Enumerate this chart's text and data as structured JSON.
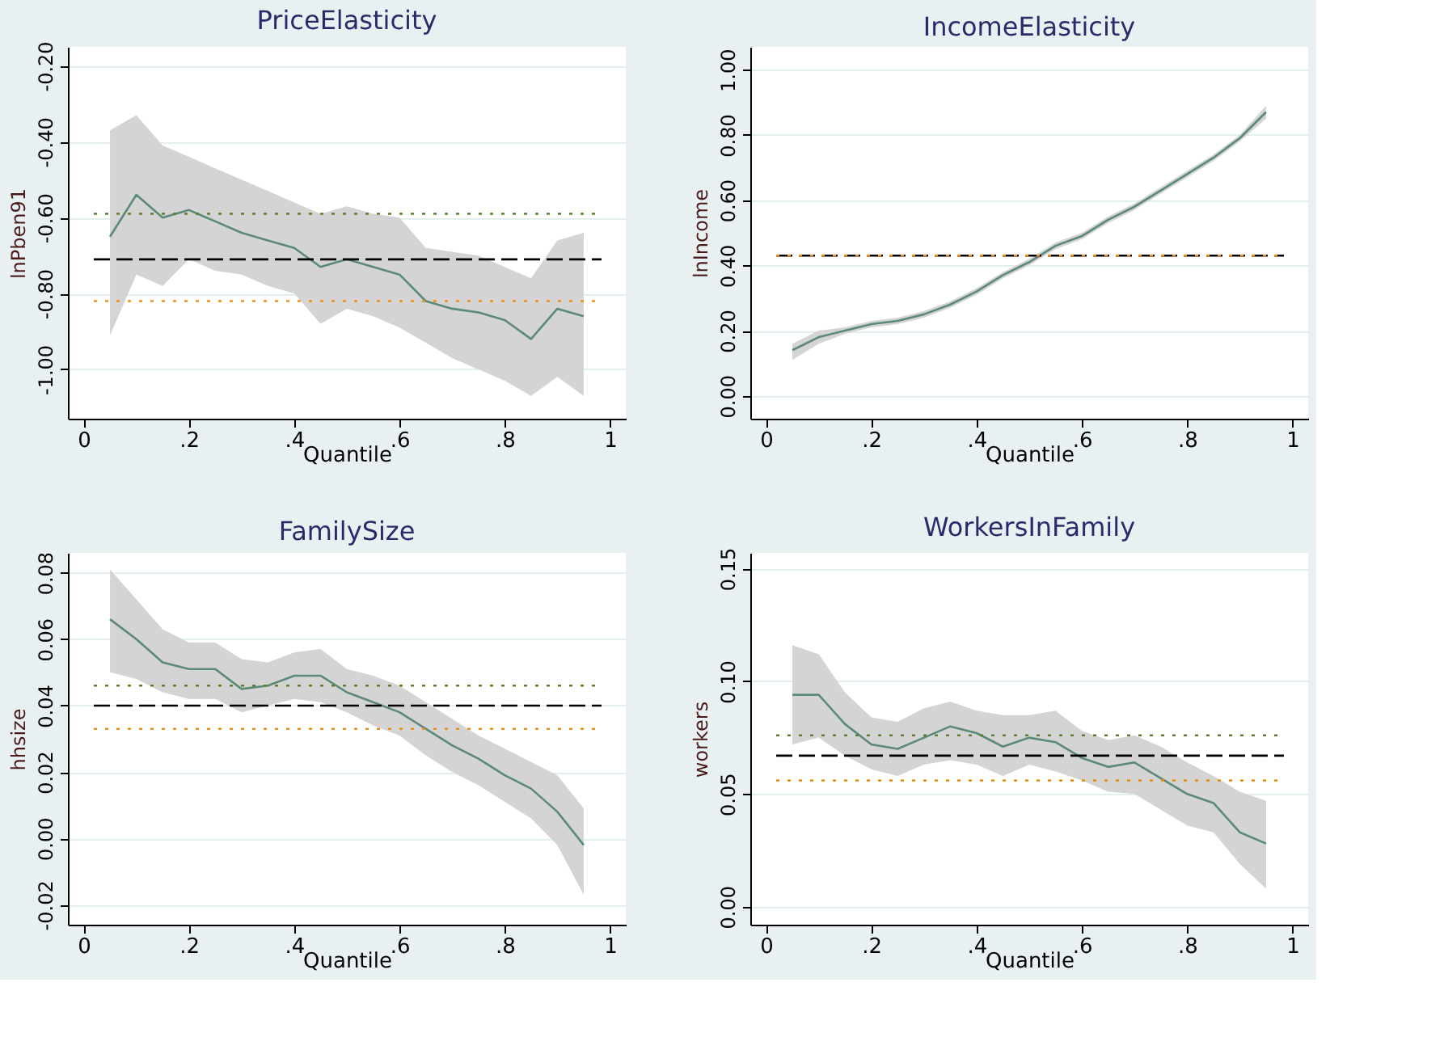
{
  "chart_data": [
    {
      "type": "line",
      "title": "PriceElasticity",
      "xlabel": "Quantile",
      "ylabel": "lnPben91",
      "x": [
        0.05,
        0.1,
        0.15,
        0.2,
        0.25,
        0.3,
        0.35,
        0.4,
        0.45,
        0.5,
        0.55,
        0.6,
        0.65,
        0.7,
        0.75,
        0.8,
        0.85,
        0.9,
        0.95
      ],
      "series": [
        {
          "color": "#5a8a78",
          "values": [
            -0.65,
            -0.54,
            -0.6,
            -0.58,
            -0.61,
            -0.64,
            -0.66,
            -0.68,
            -0.73,
            -0.71,
            -0.73,
            -0.75,
            -0.82,
            -0.84,
            -0.85,
            -0.87,
            -0.92,
            -0.84,
            -0.86
          ],
          "lower": [
            -0.91,
            -0.75,
            -0.78,
            -0.71,
            -0.74,
            -0.75,
            -0.78,
            -0.8,
            -0.88,
            -0.84,
            -0.86,
            -0.89,
            -0.93,
            -0.97,
            -1.0,
            -1.03,
            -1.07,
            -1.02,
            -1.07
          ],
          "upper": [
            -0.37,
            -0.33,
            -0.41,
            -0.44,
            -0.47,
            -0.5,
            -0.53,
            -0.56,
            -0.59,
            -0.57,
            -0.59,
            -0.6,
            -0.68,
            -0.69,
            -0.7,
            -0.73,
            -0.76,
            -0.66,
            -0.64
          ]
        }
      ],
      "ref_lines": [
        {
          "axis": "y",
          "value": -0.71,
          "color": "#000000",
          "line_style": "dashed"
        },
        {
          "axis": "y",
          "value": -0.59,
          "color": "#5b7f2a",
          "line_style": "dotted"
        },
        {
          "axis": "y",
          "value": -0.82,
          "color": "#e8901c",
          "line_style": "dotted"
        }
      ],
      "xlim": [
        -0.03,
        1.03
      ],
      "ylim": [
        -1.13,
        -0.15
      ],
      "xticks": [
        0,
        {
          "value": 0.2,
          "label": ".2"
        },
        {
          "value": 0.4,
          "label": ".4"
        },
        {
          "value": 0.6,
          "label": ".6"
        },
        {
          "value": 0.8,
          "label": ".8"
        },
        1
      ],
      "yticks": [
        {
          "value": -1,
          "label": "-1.00"
        },
        {
          "value": -0.8,
          "label": "-0.80"
        },
        {
          "value": -0.6,
          "label": "-0.60"
        },
        {
          "value": -0.4,
          "label": "-0.40"
        },
        {
          "value": -0.2,
          "label": "-0.20"
        }
      ],
      "grid": "y"
    },
    {
      "type": "line",
      "title": "IncomeElasticity",
      "xlabel": "Quantile",
      "ylabel": "lnIncome",
      "x": [
        0.05,
        0.1,
        0.15,
        0.2,
        0.25,
        0.3,
        0.35,
        0.4,
        0.45,
        0.5,
        0.55,
        0.6,
        0.65,
        0.7,
        0.75,
        0.8,
        0.85,
        0.9,
        0.95
      ],
      "series": [
        {
          "color": "#5a8a78",
          "values": [
            0.14,
            0.18,
            0.2,
            0.22,
            0.23,
            0.25,
            0.28,
            0.32,
            0.37,
            0.41,
            0.46,
            0.49,
            0.54,
            0.58,
            0.63,
            0.68,
            0.73,
            0.79,
            0.87
          ],
          "lower": [
            0.11,
            0.16,
            0.19,
            0.21,
            0.22,
            0.24,
            0.27,
            0.31,
            0.36,
            0.4,
            0.45,
            0.48,
            0.53,
            0.57,
            0.62,
            0.67,
            0.72,
            0.78,
            0.85
          ],
          "upper": [
            0.16,
            0.2,
            0.21,
            0.23,
            0.24,
            0.26,
            0.29,
            0.33,
            0.38,
            0.42,
            0.47,
            0.5,
            0.55,
            0.59,
            0.64,
            0.69,
            0.74,
            0.8,
            0.89
          ]
        }
      ],
      "ref_lines": [
        {
          "axis": "y",
          "value": 0.43,
          "color": "#000000",
          "line_style": "dashed"
        },
        {
          "axis": "y",
          "value": 0.43,
          "color": "#e8901c",
          "line_style": "dotted"
        }
      ],
      "xlim": [
        -0.03,
        1.03
      ],
      "ylim": [
        -0.07,
        1.07
      ],
      "xticks": [
        0,
        {
          "value": 0.2,
          "label": ".2"
        },
        {
          "value": 0.4,
          "label": ".4"
        },
        {
          "value": 0.6,
          "label": ".6"
        },
        {
          "value": 0.8,
          "label": ".8"
        },
        1
      ],
      "yticks": [
        {
          "value": 0,
          "label": "0.00"
        },
        {
          "value": 0.2,
          "label": "0.20"
        },
        {
          "value": 0.4,
          "label": "0.40"
        },
        {
          "value": 0.6,
          "label": "0.60"
        },
        {
          "value": 0.8,
          "label": "0.80"
        },
        {
          "value": 1,
          "label": "1.00"
        }
      ],
      "grid": "y"
    },
    {
      "type": "line",
      "title": "FamilySize",
      "xlabel": "Quantile",
      "ylabel": "hhsize",
      "x": [
        0.05,
        0.1,
        0.15,
        0.2,
        0.25,
        0.3,
        0.35,
        0.4,
        0.45,
        0.5,
        0.55,
        0.6,
        0.65,
        0.7,
        0.75,
        0.8,
        0.85,
        0.9,
        0.95
      ],
      "series": [
        {
          "color": "#5a8a78",
          "values": [
            0.066,
            0.06,
            0.053,
            0.051,
            0.051,
            0.045,
            0.046,
            0.049,
            0.049,
            0.044,
            0.041,
            0.038,
            0.033,
            0.028,
            0.024,
            0.019,
            0.015,
            0.008,
            -0.002
          ],
          "lower": [
            0.05,
            0.048,
            0.044,
            0.042,
            0.042,
            0.038,
            0.04,
            0.042,
            0.041,
            0.038,
            0.034,
            0.031,
            0.025,
            0.02,
            0.016,
            0.011,
            0.006,
            -0.002,
            -0.017
          ],
          "upper": [
            0.081,
            0.072,
            0.063,
            0.059,
            0.059,
            0.054,
            0.053,
            0.056,
            0.057,
            0.051,
            0.049,
            0.046,
            0.041,
            0.036,
            0.031,
            0.027,
            0.023,
            0.019,
            0.009
          ]
        }
      ],
      "ref_lines": [
        {
          "axis": "y",
          "value": 0.04,
          "color": "#000000",
          "line_style": "dashed"
        },
        {
          "axis": "y",
          "value": 0.046,
          "color": "#5b7f2a",
          "line_style": "dotted"
        },
        {
          "axis": "y",
          "value": 0.033,
          "color": "#e8901c",
          "line_style": "dotted"
        }
      ],
      "xlim": [
        -0.03,
        1.03
      ],
      "ylim": [
        -0.026,
        0.086
      ],
      "xticks": [
        0,
        {
          "value": 0.2,
          "label": ".2"
        },
        {
          "value": 0.4,
          "label": ".4"
        },
        {
          "value": 0.6,
          "label": ".6"
        },
        {
          "value": 0.8,
          "label": ".8"
        },
        1
      ],
      "yticks": [
        -0.02,
        {
          "value": 0,
          "label": "0.00"
        },
        {
          "value": 0.02,
          "label": "0.02"
        },
        {
          "value": 0.04,
          "label": "0.04"
        },
        {
          "value": 0.06,
          "label": "0.06"
        },
        {
          "value": 0.08,
          "label": "0.08"
        }
      ],
      "grid": "y"
    },
    {
      "type": "line",
      "title": "WorkersInFamily",
      "xlabel": "Quantile",
      "ylabel": "workers",
      "x": [
        0.05,
        0.1,
        0.15,
        0.2,
        0.25,
        0.3,
        0.35,
        0.4,
        0.45,
        0.5,
        0.55,
        0.6,
        0.65,
        0.7,
        0.75,
        0.8,
        0.85,
        0.9,
        0.95
      ],
      "series": [
        {
          "color": "#5a8a78",
          "values": [
            0.094,
            0.094,
            0.081,
            0.072,
            0.07,
            0.075,
            0.08,
            0.077,
            0.071,
            0.075,
            0.073,
            0.066,
            0.062,
            0.064,
            0.057,
            0.05,
            0.046,
            0.033,
            0.028
          ],
          "lower": [
            0.072,
            0.075,
            0.067,
            0.061,
            0.058,
            0.063,
            0.065,
            0.063,
            0.058,
            0.063,
            0.06,
            0.056,
            0.051,
            0.05,
            0.043,
            0.036,
            0.033,
            0.019,
            0.008
          ],
          "upper": [
            0.116,
            0.112,
            0.095,
            0.084,
            0.082,
            0.088,
            0.091,
            0.087,
            0.085,
            0.085,
            0.087,
            0.078,
            0.074,
            0.076,
            0.071,
            0.064,
            0.058,
            0.051,
            0.047
          ]
        }
      ],
      "ref_lines": [
        {
          "axis": "y",
          "value": 0.067,
          "color": "#000000",
          "line_style": "dashed"
        },
        {
          "axis": "y",
          "value": 0.076,
          "color": "#5b7f2a",
          "line_style": "dotted"
        },
        {
          "axis": "y",
          "value": 0.056,
          "color": "#e8901c",
          "line_style": "dotted"
        }
      ],
      "xlim": [
        -0.03,
        1.03
      ],
      "ylim": [
        -0.008,
        0.157
      ],
      "xticks": [
        0,
        {
          "value": 0.2,
          "label": ".2"
        },
        {
          "value": 0.4,
          "label": ".4"
        },
        {
          "value": 0.6,
          "label": ".6"
        },
        {
          "value": 0.8,
          "label": ".8"
        },
        1
      ],
      "yticks": [
        {
          "value": 0,
          "label": "0.00"
        },
        {
          "value": 0.05,
          "label": "0.05"
        },
        {
          "value": 0.1,
          "label": "0.10"
        },
        {
          "value": 0.15,
          "label": "0.15"
        }
      ],
      "grid": "y"
    }
  ]
}
